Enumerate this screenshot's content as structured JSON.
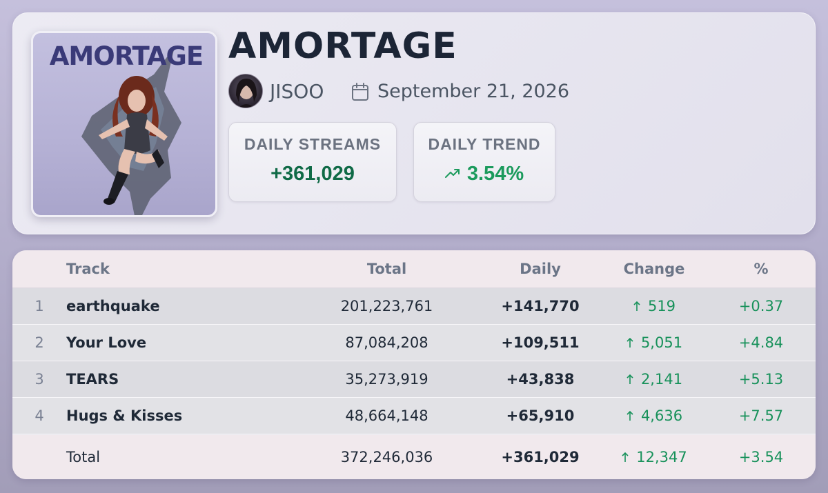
{
  "album": {
    "cover_text": "AMORTAGE",
    "title": "AMORTAGE",
    "artist": "JISOO",
    "release_date": "September 21, 2026"
  },
  "stats": {
    "streams_label": "DAILY STREAMS",
    "streams_value": "+361,029",
    "trend_label": "DAILY TREND",
    "trend_value": "3.54%"
  },
  "colors": {
    "positive": "#17915a",
    "title": "#1c2536",
    "header_row_bg": "#f1e9ed"
  },
  "icons": [
    "artist-avatar",
    "calendar-icon",
    "trend-up-icon",
    "arrow-up-icon"
  ],
  "table": {
    "headers": {
      "track": "Track",
      "total": "Total",
      "daily": "Daily",
      "change": "Change",
      "pct": "%"
    },
    "rows": [
      {
        "num": "1",
        "track": "earthquake",
        "total": "201,223,761",
        "daily": "+141,770",
        "change": "519",
        "pct": "+0.37"
      },
      {
        "num": "2",
        "track": "Your Love",
        "total": "87,084,208",
        "daily": "+109,511",
        "change": "5,051",
        "pct": "+4.84"
      },
      {
        "num": "3",
        "track": "TEARS",
        "total": "35,273,919",
        "daily": "+43,838",
        "change": "2,141",
        "pct": "+5.13"
      },
      {
        "num": "4",
        "track": "Hugs & Kisses",
        "total": "48,664,148",
        "daily": "+65,910",
        "change": "4,636",
        "pct": "+7.57"
      }
    ],
    "footer": {
      "label": "Total",
      "total": "372,246,036",
      "daily": "+361,029",
      "change": "12,347",
      "pct": "+3.54"
    }
  }
}
